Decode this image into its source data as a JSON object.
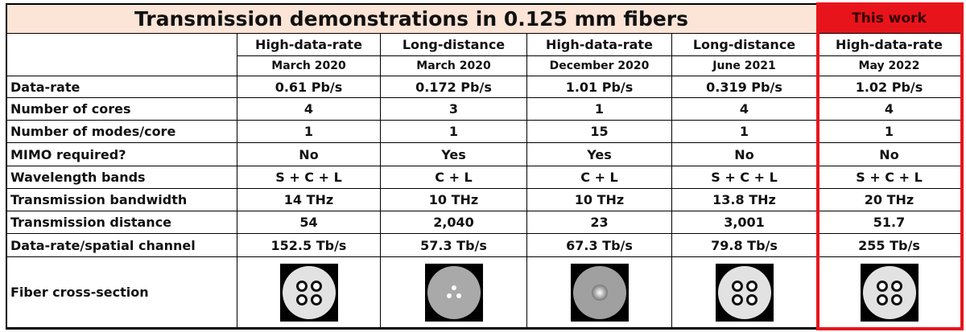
{
  "title": "Transmission demonstrations in 0.125 mm fibers",
  "this_work": "This work",
  "columns": [
    {
      "type": "High-data-rate",
      "date": "March 2020"
    },
    {
      "type": "Long-distance",
      "date": "March 2020"
    },
    {
      "type": "High-data-rate",
      "date": "December 2020"
    },
    {
      "type": "Long-distance",
      "date": "June 2021"
    },
    {
      "type": "High-data-rate",
      "date": "May 2022"
    }
  ],
  "rows": [
    {
      "label": "Data-rate",
      "values": [
        "0.61 Pb/s",
        "0.172 Pb/s",
        "1.01 Pb/s",
        "0.319 Pb/s",
        "1.02 Pb/s"
      ]
    },
    {
      "label": "Number of cores",
      "values": [
        "4",
        "3",
        "1",
        "4",
        "4"
      ]
    },
    {
      "label": "Number of modes/core",
      "values": [
        "1",
        "1",
        "15",
        "1",
        "1"
      ]
    },
    {
      "label": "MIMO required?",
      "values": [
        "No",
        "Yes",
        "Yes",
        "No",
        "No"
      ]
    },
    {
      "label": "Wavelength bands",
      "values": [
        "S + C + L",
        "C + L",
        "C + L",
        "S + C + L",
        "S + C + L"
      ]
    },
    {
      "label": "Transmission bandwidth",
      "values": [
        "14 THz",
        "10 THz",
        "10 THz",
        "13.8 THz",
        "20 THz"
      ]
    },
    {
      "label": "Transmission distance",
      "values": [
        "54",
        "2,040",
        "23",
        "3,001",
        "51.7"
      ]
    },
    {
      "label": "Data-rate/spatial channel",
      "values": [
        "152.5 Tb/s",
        "57.3 Tb/s",
        "67.3 Tb/s",
        "79.8 Tb/s",
        "255 Tb/s"
      ]
    }
  ],
  "cross_section_label": "Fiber cross-section"
}
